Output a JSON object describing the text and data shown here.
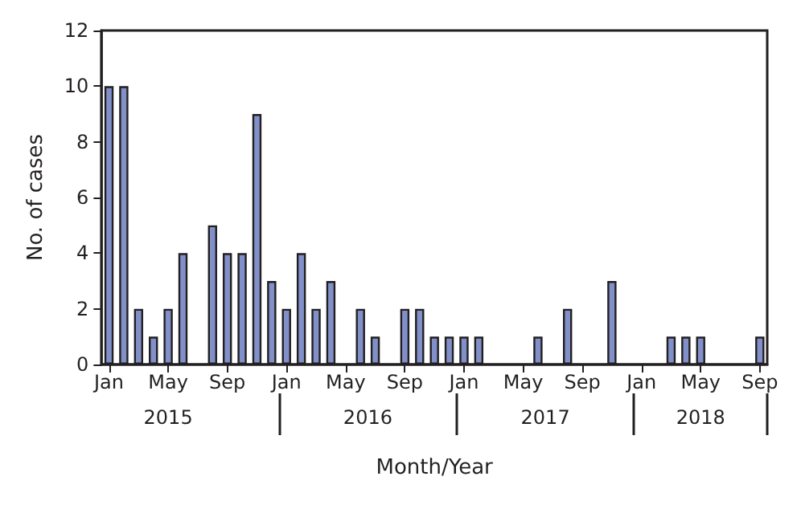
{
  "chart_data": {
    "type": "bar",
    "xlabel": "Month/Year",
    "ylabel": "No. of cases",
    "categories": [
      "Jan",
      null,
      null,
      null,
      "May",
      null,
      null,
      null,
      "Sep",
      null,
      null,
      null,
      "Jan",
      null,
      null,
      null,
      "May",
      null,
      null,
      null,
      "Sep",
      null,
      null,
      null,
      "Jan",
      null,
      null,
      null,
      "May",
      null,
      null,
      null,
      "Sep",
      null,
      null,
      null,
      "Jan",
      null,
      null,
      null,
      "May",
      null,
      null,
      null,
      "Sep"
    ],
    "values": [
      10,
      10,
      2,
      1,
      2,
      4,
      0,
      5,
      4,
      4,
      9,
      3,
      2,
      4,
      2,
      3,
      0,
      2,
      1,
      0,
      2,
      2,
      1,
      1,
      1,
      1,
      0,
      0,
      0,
      1,
      0,
      2,
      0,
      0,
      3,
      0,
      0,
      0,
      1,
      1,
      1,
      0,
      0,
      0,
      1
    ],
    "color": "#8190c9",
    "annotations": [
      "2015",
      "2016",
      "2017",
      "2018"
    ],
    "ylim": [
      0,
      12
    ],
    "yticks": [
      0,
      2,
      4,
      6,
      8,
      10,
      12
    ],
    "grid": false
  }
}
